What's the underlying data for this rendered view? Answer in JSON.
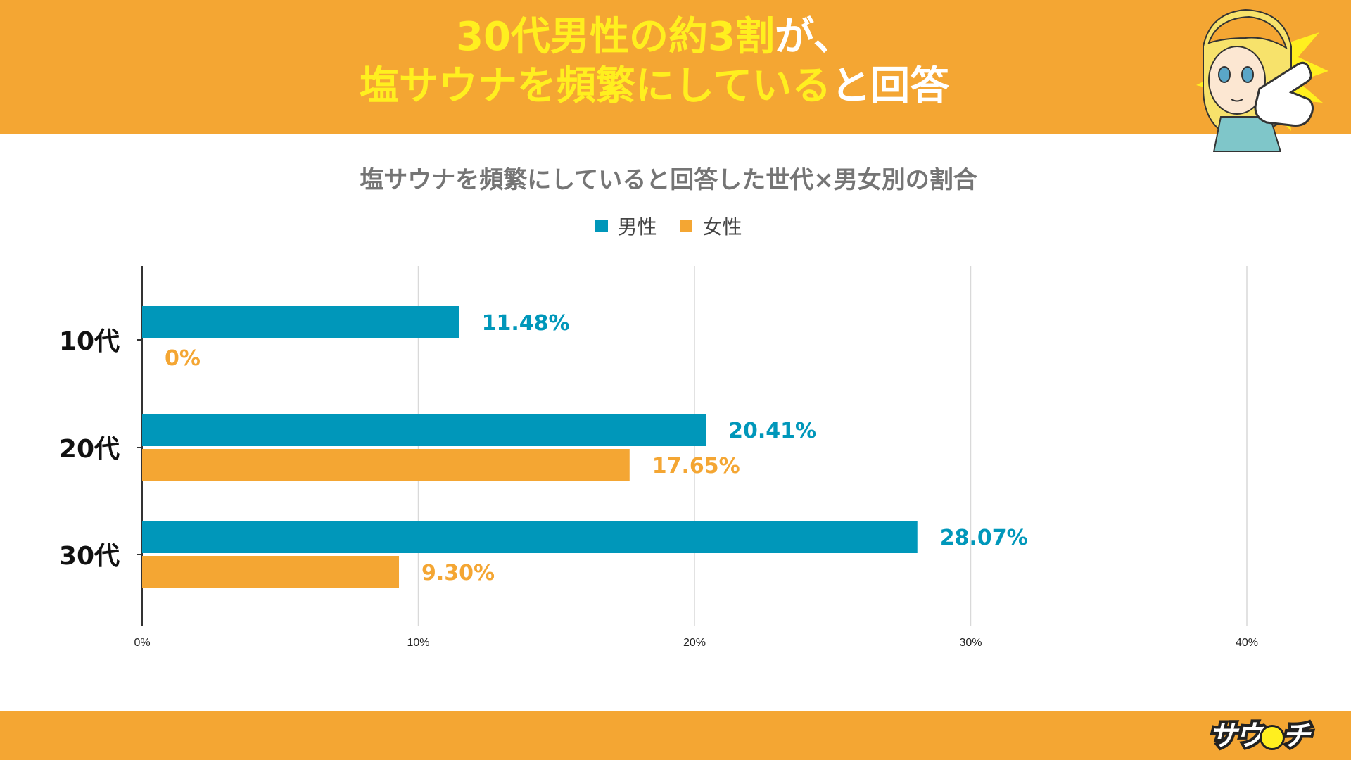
{
  "header": {
    "line1_highlight": "30代男性の約3割",
    "line1_rest": "が、",
    "line2_highlight": "塩サウナを頻繁にしている",
    "line2_rest": "と回答"
  },
  "mascot": {
    "icon": "pointing-girl-mascot-icon"
  },
  "footer": {
    "brand_a": "サウ",
    "brand_b": "チ",
    "brand_icon": "sauna-eye-logo-icon"
  },
  "colors": {
    "band": "#F4A633",
    "headline_highlight": "#FFEF1F",
    "male": "#0097BA",
    "female": "#F4A633",
    "grid": "#D9D9D9",
    "title": "#757575"
  },
  "chart_data": {
    "type": "bar",
    "orientation": "horizontal",
    "title": "塩サウナを頻繁にしていると回答した世代×男女別の割合",
    "categories": [
      "10代",
      "20代",
      "30代"
    ],
    "series": [
      {
        "name": "男性",
        "values": [
          11.48,
          20.41,
          28.07
        ],
        "labels": [
          "11.48%",
          "20.41%",
          "28.07%"
        ]
      },
      {
        "name": "女性",
        "values": [
          0,
          17.65,
          9.3
        ],
        "labels": [
          "0%",
          "17.65%",
          "9.30%"
        ]
      }
    ],
    "xlim": [
      0,
      40
    ],
    "xticks": [
      0,
      10,
      20,
      30,
      40
    ],
    "xtick_labels": [
      "0%",
      "10%",
      "20%",
      "30%",
      "40%"
    ],
    "grid": true,
    "legend": "top-center"
  }
}
